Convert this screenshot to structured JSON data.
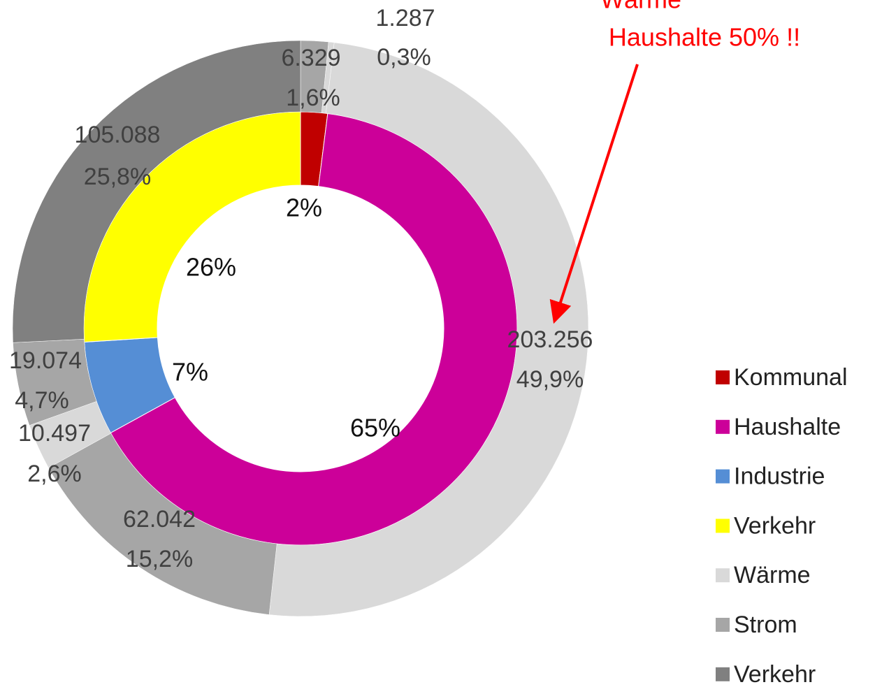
{
  "chart_data": {
    "type": "donut",
    "rings": [
      {
        "values": [
          2,
          65,
          7,
          26
        ],
        "value_labels": [
          "2%",
          "65%",
          "7%",
          "26%"
        ],
        "colors": [
          "#c00000",
          "#cc0099",
          "#558ed5",
          "#ffff00"
        ]
      },
      {
        "values": [
          6329,
          1287,
          203256,
          62042,
          10497,
          19074,
          105088
        ],
        "value_labels": [
          "6.329",
          "1.287",
          "203.256",
          "62.042",
          "10.497",
          "19.074",
          "105.088"
        ],
        "percents": [
          1.6,
          0.3,
          49.9,
          15.2,
          2.6,
          4.7,
          25.8
        ],
        "percent_labels": [
          "1,6%",
          "0,3%",
          "49,9%",
          "15,2%",
          "2,6%",
          "4,7%",
          "25,8%"
        ],
        "colors": [
          "#a6a6a6",
          "#d9d9d9",
          "#d9d9d9",
          "#a6a6a6",
          "#d9d9d9",
          "#a6a6a6",
          "#808080"
        ]
      }
    ],
    "legend": [
      {
        "name": "Kommunal",
        "color": "#c00000"
      },
      {
        "name": "Haushalte",
        "color": "#cc0099"
      },
      {
        "name": "Industrie",
        "color": "#558ed5"
      },
      {
        "name": "Verkehr",
        "color": "#ffff00"
      },
      {
        "name": "Wärme",
        "color": "#d9d9d9"
      },
      {
        "name": "Strom",
        "color": "#a6a6a6"
      },
      {
        "name": "Verkehr",
        "color": "#808080"
      }
    ],
    "annotation": [
      "Wärme",
      "Haushalte 50% !!"
    ]
  }
}
